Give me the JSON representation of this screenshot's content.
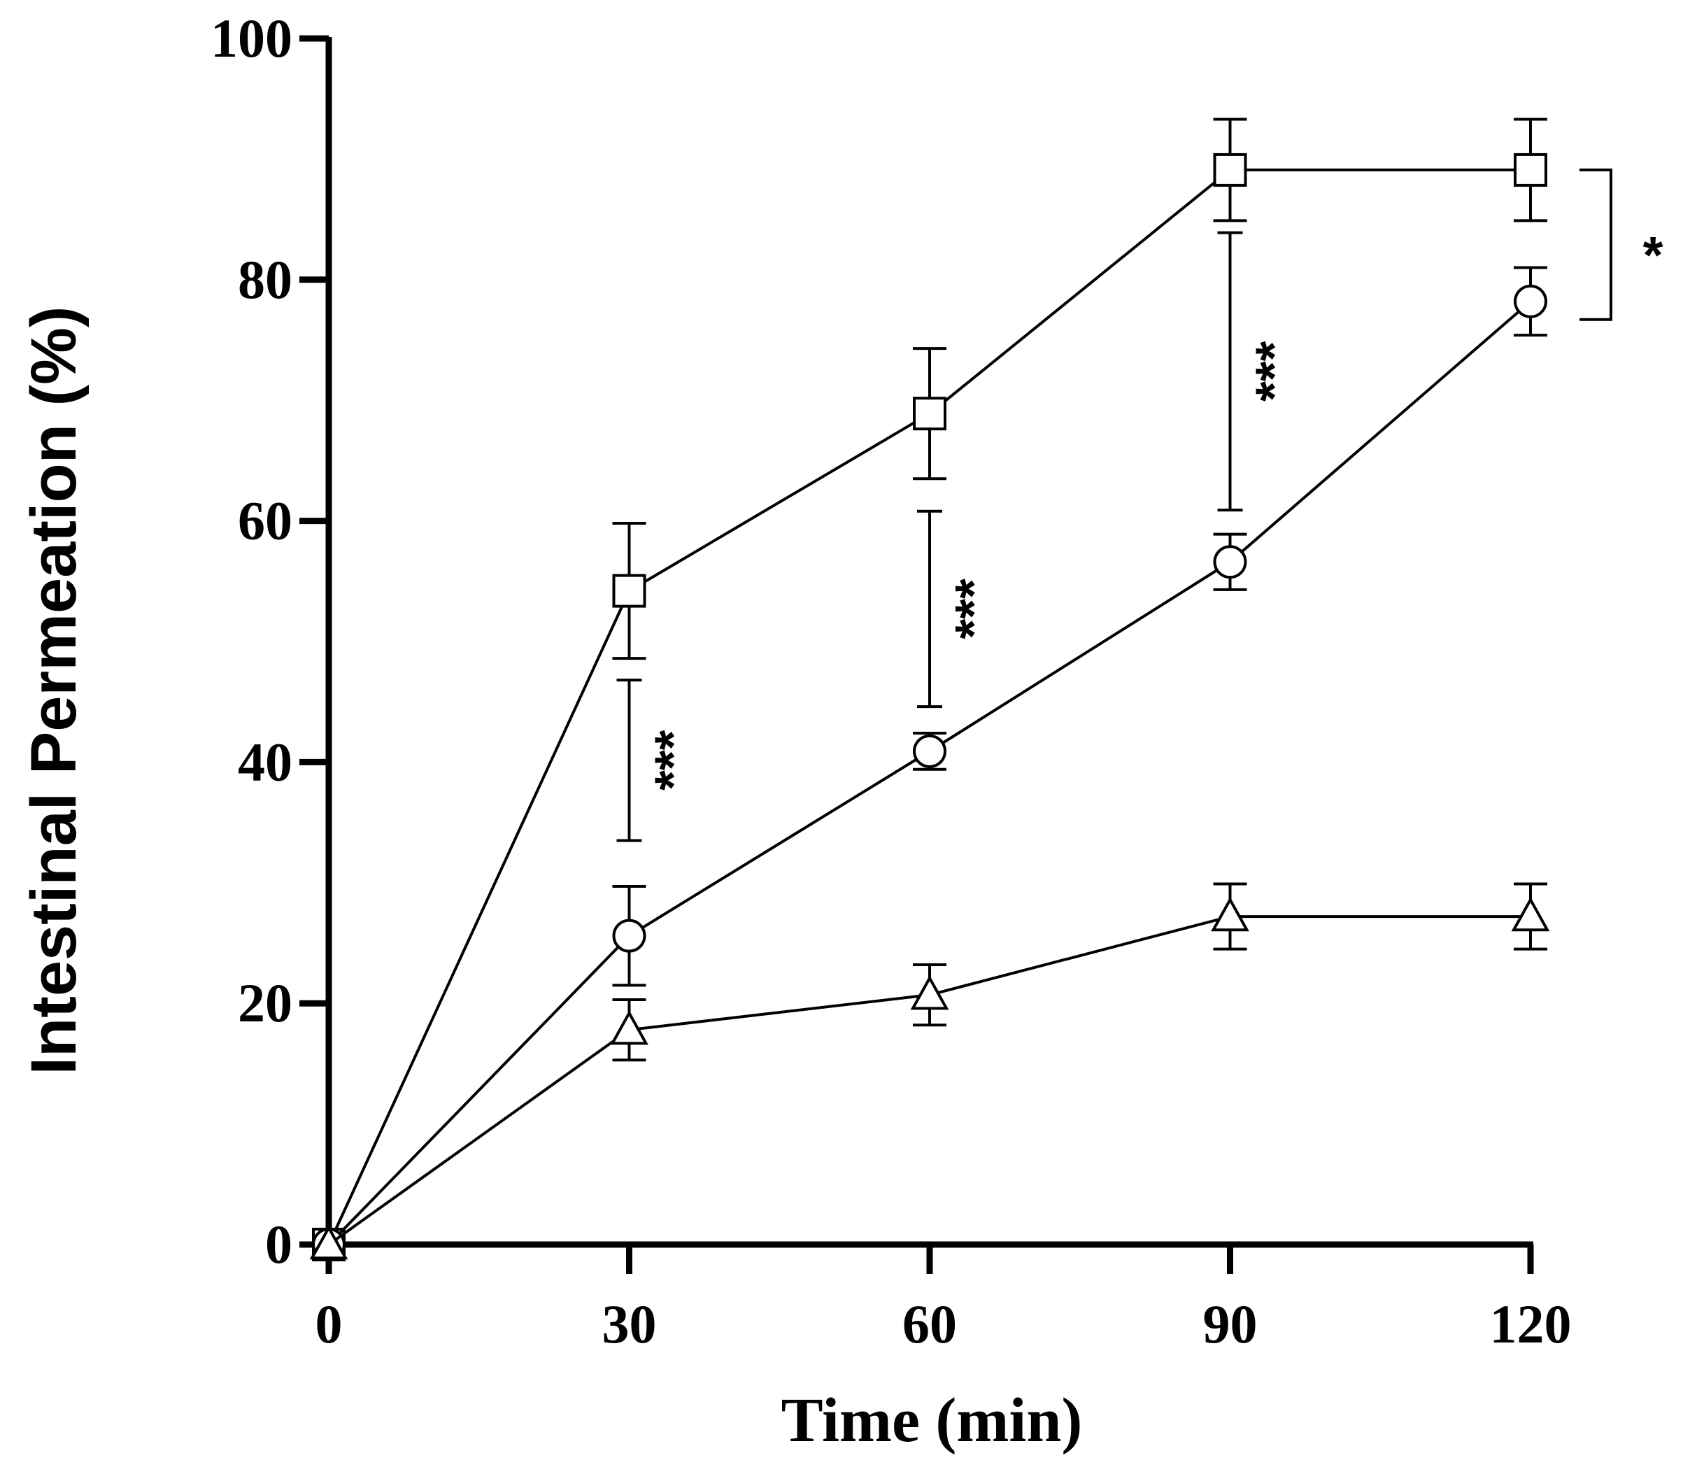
{
  "chart_data": {
    "type": "line",
    "title": "",
    "xlabel": "Time (min)",
    "ylabel": "Intestinal Permeation (%)",
    "x": [
      0,
      30,
      60,
      90,
      120
    ],
    "xticks": [
      "0",
      "30",
      "60",
      "90",
      "120"
    ],
    "yticks": [
      "0",
      "20",
      "40",
      "60",
      "80",
      "100"
    ],
    "xlim": [
      0,
      120
    ],
    "ylim": [
      0,
      100
    ],
    "grid": false,
    "series": [
      {
        "name": "square",
        "marker": "square",
        "values": [
          0,
          54.2,
          68.9,
          89.1,
          89.1
        ],
        "errors": [
          0,
          5.6,
          5.4,
          4.2,
          4.2
        ]
      },
      {
        "name": "circle",
        "marker": "circle",
        "values": [
          0,
          25.6,
          40.9,
          56.6,
          78.2
        ],
        "errors": [
          0,
          4.1,
          1.5,
          2.3,
          2.8
        ]
      },
      {
        "name": "triangle",
        "marker": "triangle",
        "values": [
          0,
          17.8,
          20.7,
          27.2,
          27.2
        ],
        "errors": [
          0,
          2.5,
          2.5,
          2.7,
          2.7
        ]
      }
    ],
    "annotations": [
      {
        "text": "***",
        "x": 30,
        "range": [
          33.5,
          46.8
        ]
      },
      {
        "text": "***",
        "x": 60,
        "range": [
          44.6,
          60.8
        ]
      },
      {
        "text": "***",
        "x": 90,
        "range": [
          60.9,
          83.9
        ]
      },
      {
        "text": "*",
        "bracket": [
          89.1,
          76.7
        ]
      }
    ]
  }
}
